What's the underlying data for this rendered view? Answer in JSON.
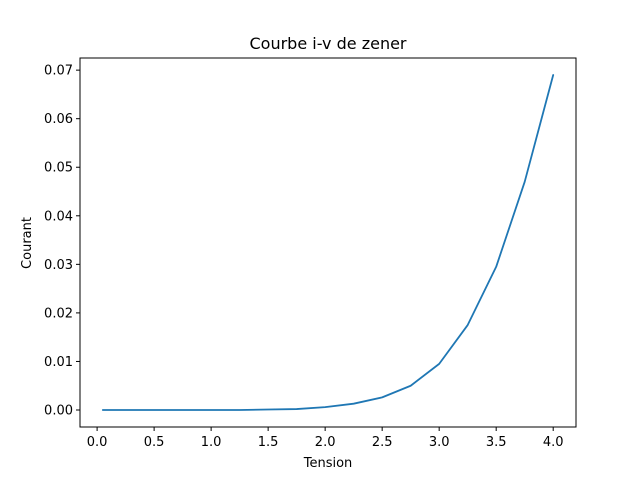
{
  "chart_data": {
    "type": "line",
    "title": "Courbe i-v de zener",
    "xlabel": "Tension",
    "ylabel": "Courant",
    "xlim": [
      -0.15,
      4.2
    ],
    "ylim": [
      -0.0035,
      0.0725
    ],
    "xticks": [
      0.0,
      0.5,
      1.0,
      1.5,
      2.0,
      2.5,
      3.0,
      3.5,
      4.0
    ],
    "xtick_labels": [
      "0.0",
      "0.5",
      "1.0",
      "1.5",
      "2.0",
      "2.5",
      "3.0",
      "3.5",
      "4.0"
    ],
    "yticks": [
      0.0,
      0.01,
      0.02,
      0.03,
      0.04,
      0.05,
      0.06,
      0.07
    ],
    "ytick_labels": [
      "0.00",
      "0.01",
      "0.02",
      "0.03",
      "0.04",
      "0.05",
      "0.06",
      "0.07"
    ],
    "grid": false,
    "legend": "none",
    "line_color": "#1f77b4",
    "series": [
      {
        "x": [
          0.05,
          0.25,
          0.5,
          0.75,
          1.0,
          1.25,
          1.5,
          1.75,
          2.0,
          2.25,
          2.5,
          2.75,
          3.0,
          3.25,
          3.5,
          3.75,
          4.0
        ],
        "values": [
          0.0,
          0.0,
          0.0,
          0.0,
          0.0,
          0.0,
          0.0001,
          0.0002,
          0.0006,
          0.0013,
          0.0026,
          0.005,
          0.0095,
          0.0175,
          0.0295,
          0.047,
          0.069
        ]
      }
    ]
  }
}
